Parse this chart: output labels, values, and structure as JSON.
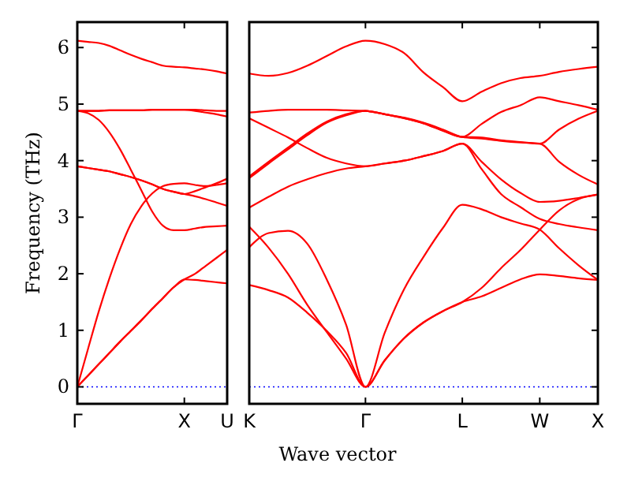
{
  "chart_data": [
    {
      "type": "line",
      "ylabel": "Frequency (THz)",
      "ylim": [
        -0.3,
        6.45
      ],
      "categories": [
        "Γ",
        null,
        null,
        null,
        null,
        null,
        null,
        null,
        null,
        null,
        "X",
        null,
        null,
        null,
        "U"
      ],
      "yticks": [
        0,
        1,
        2,
        3,
        4,
        5,
        6
      ],
      "grid": false,
      "marker": "none",
      "line_style": "solid",
      "ref_lines": [
        {
          "axis": "y",
          "value": 0,
          "label": null,
          "color": "#0000ff",
          "line_style": "dotted"
        }
      ],
      "series": [
        {
          "color": "#ff0000",
          "values": [
            6.12,
            6.1,
            6.08,
            6.03,
            5.95,
            5.87,
            5.8,
            5.74,
            5.68,
            5.66,
            5.65,
            5.63,
            5.61,
            5.58,
            5.54
          ]
        },
        {
          "color": "#ff0000",
          "values": [
            4.88,
            4.88,
            4.88,
            4.89,
            4.89,
            4.89,
            4.89,
            4.9,
            4.9,
            4.9,
            4.9,
            4.9,
            4.89,
            4.88,
            4.88
          ]
        },
        {
          "color": "#ff0000",
          "values": [
            4.88,
            4.88,
            4.88,
            4.89,
            4.89,
            4.89,
            4.89,
            4.9,
            4.9,
            4.9,
            4.9,
            4.88,
            4.85,
            4.82,
            4.78
          ]
        },
        {
          "color": "#ff0000",
          "values": [
            4.88,
            4.84,
            4.72,
            4.5,
            4.2,
            3.84,
            3.47,
            3.1,
            2.85,
            2.77,
            2.77,
            2.8,
            2.83,
            2.84,
            2.85
          ]
        },
        {
          "color": "#ff0000",
          "values": [
            3.9,
            3.87,
            3.84,
            3.81,
            3.76,
            3.71,
            3.65,
            3.58,
            3.5,
            3.45,
            3.41,
            3.37,
            3.32,
            3.26,
            3.2
          ]
        },
        {
          "color": "#ff0000",
          "values": [
            3.9,
            3.87,
            3.84,
            3.81,
            3.76,
            3.71,
            3.65,
            3.58,
            3.5,
            3.45,
            3.41,
            3.46,
            3.53,
            3.6,
            3.68
          ]
        },
        {
          "color": "#ff0000",
          "values": [
            0,
            0.67,
            1.33,
            1.92,
            2.44,
            2.88,
            3.2,
            3.42,
            3.55,
            3.59,
            3.6,
            3.57,
            3.55,
            3.57,
            3.6
          ]
        },
        {
          "color": "#ff0000",
          "values": [
            0,
            0.2,
            0.4,
            0.6,
            0.8,
            0.99,
            1.18,
            1.38,
            1.57,
            1.76,
            1.9,
            1.89,
            1.87,
            1.85,
            1.83
          ]
        },
        {
          "color": "#ff0000",
          "values": [
            0,
            0.2,
            0.4,
            0.6,
            0.8,
            0.99,
            1.18,
            1.38,
            1.57,
            1.76,
            1.9,
            2.0,
            2.14,
            2.28,
            2.42
          ]
        }
      ]
    },
    {
      "type": "line",
      "xlabel": "Wave vector",
      "ylim": [
        -0.3,
        6.45
      ],
      "categories": [
        "K",
        null,
        null,
        null,
        null,
        null,
        "Γ",
        null,
        null,
        null,
        null,
        "L",
        null,
        null,
        null,
        "W",
        null,
        null,
        "X"
      ],
      "yticks": [
        0,
        1,
        2,
        3,
        4,
        5,
        6
      ],
      "tick_labels": "x",
      "grid": false,
      "marker": "none",
      "line_style": "solid",
      "ref_lines": [
        {
          "axis": "y",
          "value": 0,
          "label": null,
          "color": "#0000ff",
          "line_style": "dotted"
        }
      ],
      "series": [
        {
          "color": "#ff0000",
          "values": [
            5.54,
            5.5,
            5.55,
            5.68,
            5.85,
            6.02,
            6.12,
            6.06,
            5.9,
            5.56,
            5.3,
            5.05,
            5.22,
            5.37,
            5.46,
            5.5,
            5.57,
            5.62,
            5.66
          ]
        },
        {
          "color": "#ff0000",
          "values": [
            4.85,
            4.88,
            4.9,
            4.9,
            4.9,
            4.89,
            4.88,
            4.82,
            4.75,
            4.66,
            4.53,
            4.42,
            4.65,
            4.86,
            4.98,
            5.12,
            5.05,
            4.98,
            4.9
          ]
        },
        {
          "color": "#ff0000",
          "values": [
            4.75,
            4.58,
            4.41,
            4.22,
            4.05,
            3.95,
            3.9,
            3.95,
            4.0,
            4.08,
            4.17,
            4.3,
            3.98,
            3.67,
            3.43,
            3.27,
            3.29,
            3.34,
            3.4
          ]
        },
        {
          "color": "#ff0000",
          "values": [
            3.69,
            3.95,
            4.2,
            4.45,
            4.67,
            4.8,
            4.88,
            4.82,
            4.75,
            4.66,
            4.53,
            4.42,
            4.41,
            4.36,
            4.33,
            4.3,
            4.55,
            4.74,
            4.88
          ]
        },
        {
          "color": "#ff0000",
          "values": [
            3.72,
            3.98,
            4.23,
            4.48,
            4.69,
            4.82,
            4.88,
            4.82,
            4.76,
            4.67,
            4.55,
            4.42,
            4.39,
            4.35,
            4.32,
            4.3,
            3.98,
            3.75,
            3.58
          ]
        },
        {
          "color": "#ff0000",
          "values": [
            3.17,
            3.36,
            3.54,
            3.67,
            3.78,
            3.86,
            3.9,
            3.95,
            4.0,
            4.08,
            4.17,
            4.3,
            3.85,
            3.41,
            3.18,
            2.97,
            2.88,
            2.82,
            2.77
          ]
        },
        {
          "color": "#ff0000",
          "values": [
            2.47,
            2.72,
            2.76,
            2.53,
            1.9,
            1.1,
            0,
            0.96,
            1.73,
            2.3,
            2.81,
            3.22,
            3.14,
            3.0,
            2.89,
            2.78,
            2.45,
            2.15,
            1.89
          ]
        },
        {
          "color": "#ff0000",
          "values": [
            2.83,
            2.46,
            2.0,
            1.45,
            0.97,
            0.5,
            0,
            0.47,
            0.86,
            1.14,
            1.34,
            1.5,
            1.6,
            1.75,
            1.9,
            1.99,
            1.96,
            1.92,
            1.89
          ]
        },
        {
          "color": "#ff0000",
          "values": [
            1.8,
            1.71,
            1.58,
            1.31,
            0.99,
            0.6,
            0,
            0.47,
            0.86,
            1.14,
            1.34,
            1.5,
            1.75,
            2.1,
            2.42,
            2.78,
            3.12,
            3.32,
            3.4
          ]
        }
      ]
    }
  ]
}
